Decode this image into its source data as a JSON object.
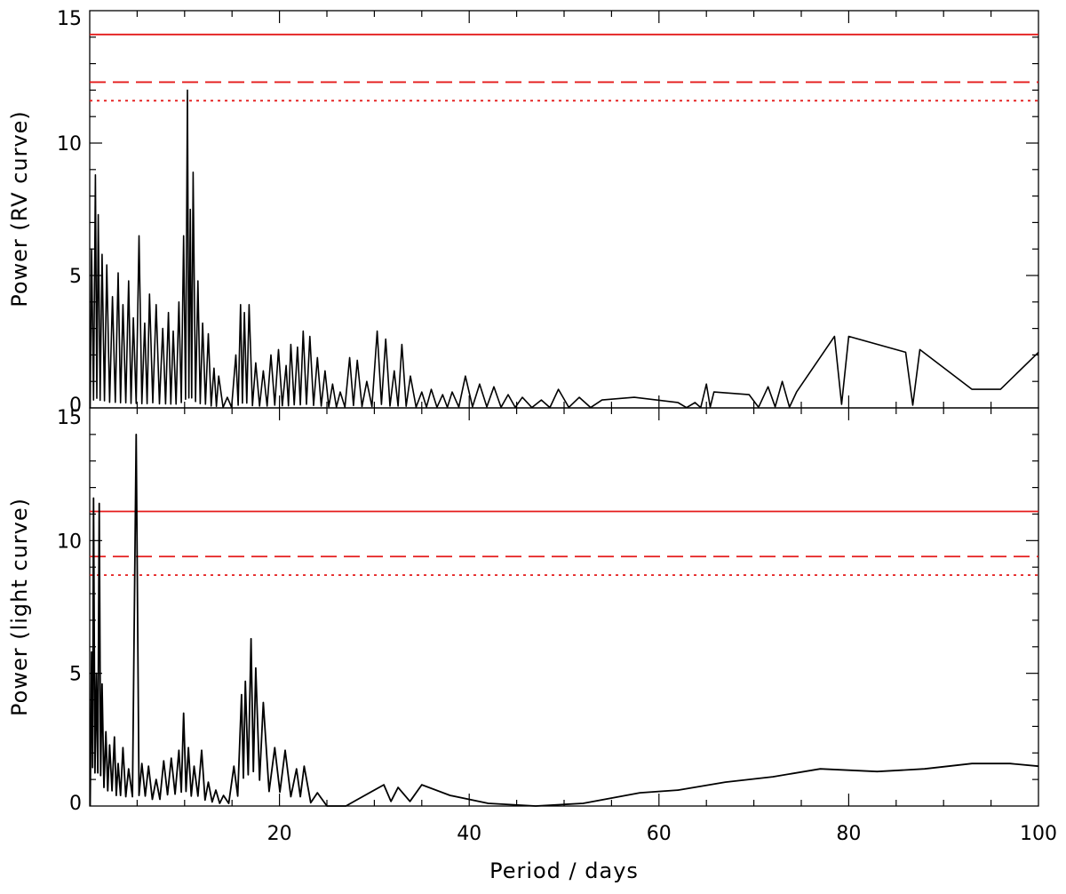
{
  "chart_data": [
    {
      "type": "line",
      "panel": "top",
      "ylabel": "Power (RV curve)",
      "xlabel": "",
      "xlim": [
        0,
        100
      ],
      "ylim": [
        0,
        15
      ],
      "x_ticks": [
        20,
        40,
        60,
        80,
        100
      ],
      "y_ticks": [
        0,
        5,
        10,
        15
      ],
      "y_tick_labels": [
        "0",
        "5",
        "10",
        "15"
      ],
      "thresholds": [
        {
          "value": 14.1,
          "style": "solid",
          "color": "#e41a1a"
        },
        {
          "value": 12.3,
          "style": "dashed",
          "color": "#e41a1a"
        },
        {
          "value": 11.6,
          "style": "dotted",
          "color": "#e41a1a"
        }
      ],
      "peaks": [
        {
          "x": 0.2,
          "y": 6.0
        },
        {
          "x": 0.6,
          "y": 8.8
        },
        {
          "x": 0.9,
          "y": 7.3
        },
        {
          "x": 1.3,
          "y": 5.8
        },
        {
          "x": 1.8,
          "y": 5.4
        },
        {
          "x": 2.4,
          "y": 4.2
        },
        {
          "x": 3.0,
          "y": 5.1
        },
        {
          "x": 3.5,
          "y": 3.9
        },
        {
          "x": 4.1,
          "y": 4.8
        },
        {
          "x": 4.6,
          "y": 3.4
        },
        {
          "x": 5.2,
          "y": 6.5
        },
        {
          "x": 5.8,
          "y": 3.2
        },
        {
          "x": 6.3,
          "y": 4.3
        },
        {
          "x": 7.0,
          "y": 3.9
        },
        {
          "x": 7.7,
          "y": 3.0
        },
        {
          "x": 8.3,
          "y": 3.6
        },
        {
          "x": 8.8,
          "y": 2.9
        },
        {
          "x": 9.4,
          "y": 4.0
        },
        {
          "x": 9.9,
          "y": 6.5
        },
        {
          "x": 10.3,
          "y": 12.0
        },
        {
          "x": 10.6,
          "y": 7.5
        },
        {
          "x": 10.9,
          "y": 8.9
        },
        {
          "x": 11.4,
          "y": 4.8
        },
        {
          "x": 11.9,
          "y": 3.2
        },
        {
          "x": 12.5,
          "y": 2.8
        },
        {
          "x": 13.1,
          "y": 1.5
        },
        {
          "x": 13.6,
          "y": 1.2
        },
        {
          "x": 14.5,
          "y": 0.4
        },
        {
          "x": 15.4,
          "y": 2.0
        },
        {
          "x": 15.9,
          "y": 3.9
        },
        {
          "x": 16.3,
          "y": 3.6
        },
        {
          "x": 16.8,
          "y": 3.9
        },
        {
          "x": 17.5,
          "y": 1.7
        },
        {
          "x": 18.3,
          "y": 1.4
        },
        {
          "x": 19.1,
          "y": 2.0
        },
        {
          "x": 19.9,
          "y": 2.2
        },
        {
          "x": 20.7,
          "y": 1.6
        },
        {
          "x": 21.2,
          "y": 2.4
        },
        {
          "x": 21.9,
          "y": 2.3
        },
        {
          "x": 22.5,
          "y": 2.9
        },
        {
          "x": 23.2,
          "y": 2.7
        },
        {
          "x": 24.0,
          "y": 1.9
        },
        {
          "x": 24.8,
          "y": 1.4
        },
        {
          "x": 25.6,
          "y": 0.9
        },
        {
          "x": 26.4,
          "y": 0.6
        },
        {
          "x": 27.4,
          "y": 1.9
        },
        {
          "x": 28.2,
          "y": 1.8
        },
        {
          "x": 29.2,
          "y": 1.0
        },
        {
          "x": 30.3,
          "y": 2.9
        },
        {
          "x": 31.2,
          "y": 2.6
        },
        {
          "x": 32.1,
          "y": 1.4
        },
        {
          "x": 32.9,
          "y": 2.4
        },
        {
          "x": 33.8,
          "y": 1.2
        },
        {
          "x": 35.0,
          "y": 0.6
        },
        {
          "x": 36.0,
          "y": 0.7
        },
        {
          "x": 37.2,
          "y": 0.5
        },
        {
          "x": 38.2,
          "y": 0.6
        },
        {
          "x": 39.6,
          "y": 1.2
        },
        {
          "x": 41.1,
          "y": 0.9
        },
        {
          "x": 42.6,
          "y": 0.8
        },
        {
          "x": 44.1,
          "y": 0.5
        },
        {
          "x": 45.6,
          "y": 0.4
        },
        {
          "x": 47.6,
          "y": 0.3
        },
        {
          "x": 49.4,
          "y": 0.7
        },
        {
          "x": 51.6,
          "y": 0.4
        },
        {
          "x": 54.0,
          "y": 0.3
        },
        {
          "x": 57.4,
          "y": 0.4
        },
        {
          "x": 62.0,
          "y": 0.2
        },
        {
          "x": 63.8,
          "y": 0.2
        },
        {
          "x": 65.0,
          "y": 0.9
        },
        {
          "x": 65.8,
          "y": 0.6
        },
        {
          "x": 69.5,
          "y": 0.5
        },
        {
          "x": 71.5,
          "y": 0.8
        },
        {
          "x": 73.0,
          "y": 1.0
        },
        {
          "x": 74.5,
          "y": 0.6
        },
        {
          "x": 78.5,
          "y": 2.7
        },
        {
          "x": 80.0,
          "y": 2.7
        },
        {
          "x": 86.0,
          "y": 2.1
        },
        {
          "x": 87.5,
          "y": 2.2
        },
        {
          "x": 93.0,
          "y": 0.7
        },
        {
          "x": 96.0,
          "y": 0.7
        },
        {
          "x": 100.0,
          "y": 2.1
        }
      ]
    },
    {
      "type": "line",
      "panel": "bottom",
      "ylabel": "Power (light curve)",
      "xlabel": "Period / days",
      "xlim": [
        0,
        100
      ],
      "ylim": [
        0,
        15
      ],
      "x_ticks": [
        20,
        40,
        60,
        80,
        100
      ],
      "x_tick_labels": [
        "20",
        "40",
        "60",
        "80",
        "100"
      ],
      "y_ticks": [
        0,
        5,
        10,
        15
      ],
      "y_tick_labels": [
        "0",
        "5",
        "10",
        "15"
      ],
      "thresholds": [
        {
          "value": 11.1,
          "style": "solid",
          "color": "#e41a1a"
        },
        {
          "value": 9.4,
          "style": "dashed",
          "color": "#e41a1a"
        },
        {
          "value": 8.7,
          "style": "dotted",
          "color": "#e41a1a"
        }
      ],
      "peaks": [
        {
          "x": 0.2,
          "y": 5.8
        },
        {
          "x": 0.4,
          "y": 11.6
        },
        {
          "x": 0.7,
          "y": 5.0
        },
        {
          "x": 1.0,
          "y": 11.4
        },
        {
          "x": 1.3,
          "y": 4.6
        },
        {
          "x": 1.7,
          "y": 2.8
        },
        {
          "x": 2.1,
          "y": 2.3
        },
        {
          "x": 2.6,
          "y": 2.6
        },
        {
          "x": 3.0,
          "y": 1.6
        },
        {
          "x": 3.5,
          "y": 2.2
        },
        {
          "x": 4.1,
          "y": 1.4
        },
        {
          "x": 4.9,
          "y": 14.0
        },
        {
          "x": 5.5,
          "y": 1.6
        },
        {
          "x": 6.2,
          "y": 1.5
        },
        {
          "x": 7.0,
          "y": 1.0
        },
        {
          "x": 7.8,
          "y": 1.7
        },
        {
          "x": 8.6,
          "y": 1.8
        },
        {
          "x": 9.4,
          "y": 2.1
        },
        {
          "x": 9.9,
          "y": 3.5
        },
        {
          "x": 10.4,
          "y": 2.2
        },
        {
          "x": 11.0,
          "y": 1.5
        },
        {
          "x": 11.8,
          "y": 2.1
        },
        {
          "x": 12.5,
          "y": 0.9
        },
        {
          "x": 13.3,
          "y": 0.6
        },
        {
          "x": 14.1,
          "y": 0.4
        },
        {
          "x": 15.2,
          "y": 1.5
        },
        {
          "x": 16.0,
          "y": 4.2
        },
        {
          "x": 16.4,
          "y": 4.7
        },
        {
          "x": 17.0,
          "y": 6.3
        },
        {
          "x": 17.5,
          "y": 5.2
        },
        {
          "x": 18.3,
          "y": 3.9
        },
        {
          "x": 19.5,
          "y": 2.2
        },
        {
          "x": 20.6,
          "y": 2.1
        },
        {
          "x": 21.8,
          "y": 1.4
        },
        {
          "x": 22.6,
          "y": 1.5
        },
        {
          "x": 24.0,
          "y": 0.5
        },
        {
          "x": 26.0,
          "y": 0.0
        },
        {
          "x": 28.0,
          "y": 0.2
        },
        {
          "x": 31.0,
          "y": 0.8
        },
        {
          "x": 32.5,
          "y": 0.7
        },
        {
          "x": 35.0,
          "y": 0.8
        },
        {
          "x": 38.0,
          "y": 0.4
        },
        {
          "x": 42.0,
          "y": 0.1
        },
        {
          "x": 47.0,
          "y": 0.0
        },
        {
          "x": 52.0,
          "y": 0.1
        },
        {
          "x": 58.0,
          "y": 0.5
        },
        {
          "x": 62.0,
          "y": 0.6
        },
        {
          "x": 67.0,
          "y": 0.9
        },
        {
          "x": 72.0,
          "y": 1.1
        },
        {
          "x": 77.0,
          "y": 1.4
        },
        {
          "x": 83.0,
          "y": 1.3
        },
        {
          "x": 88.0,
          "y": 1.4
        },
        {
          "x": 93.0,
          "y": 1.6
        },
        {
          "x": 97.0,
          "y": 1.6
        },
        {
          "x": 100.0,
          "y": 1.5
        }
      ]
    }
  ]
}
